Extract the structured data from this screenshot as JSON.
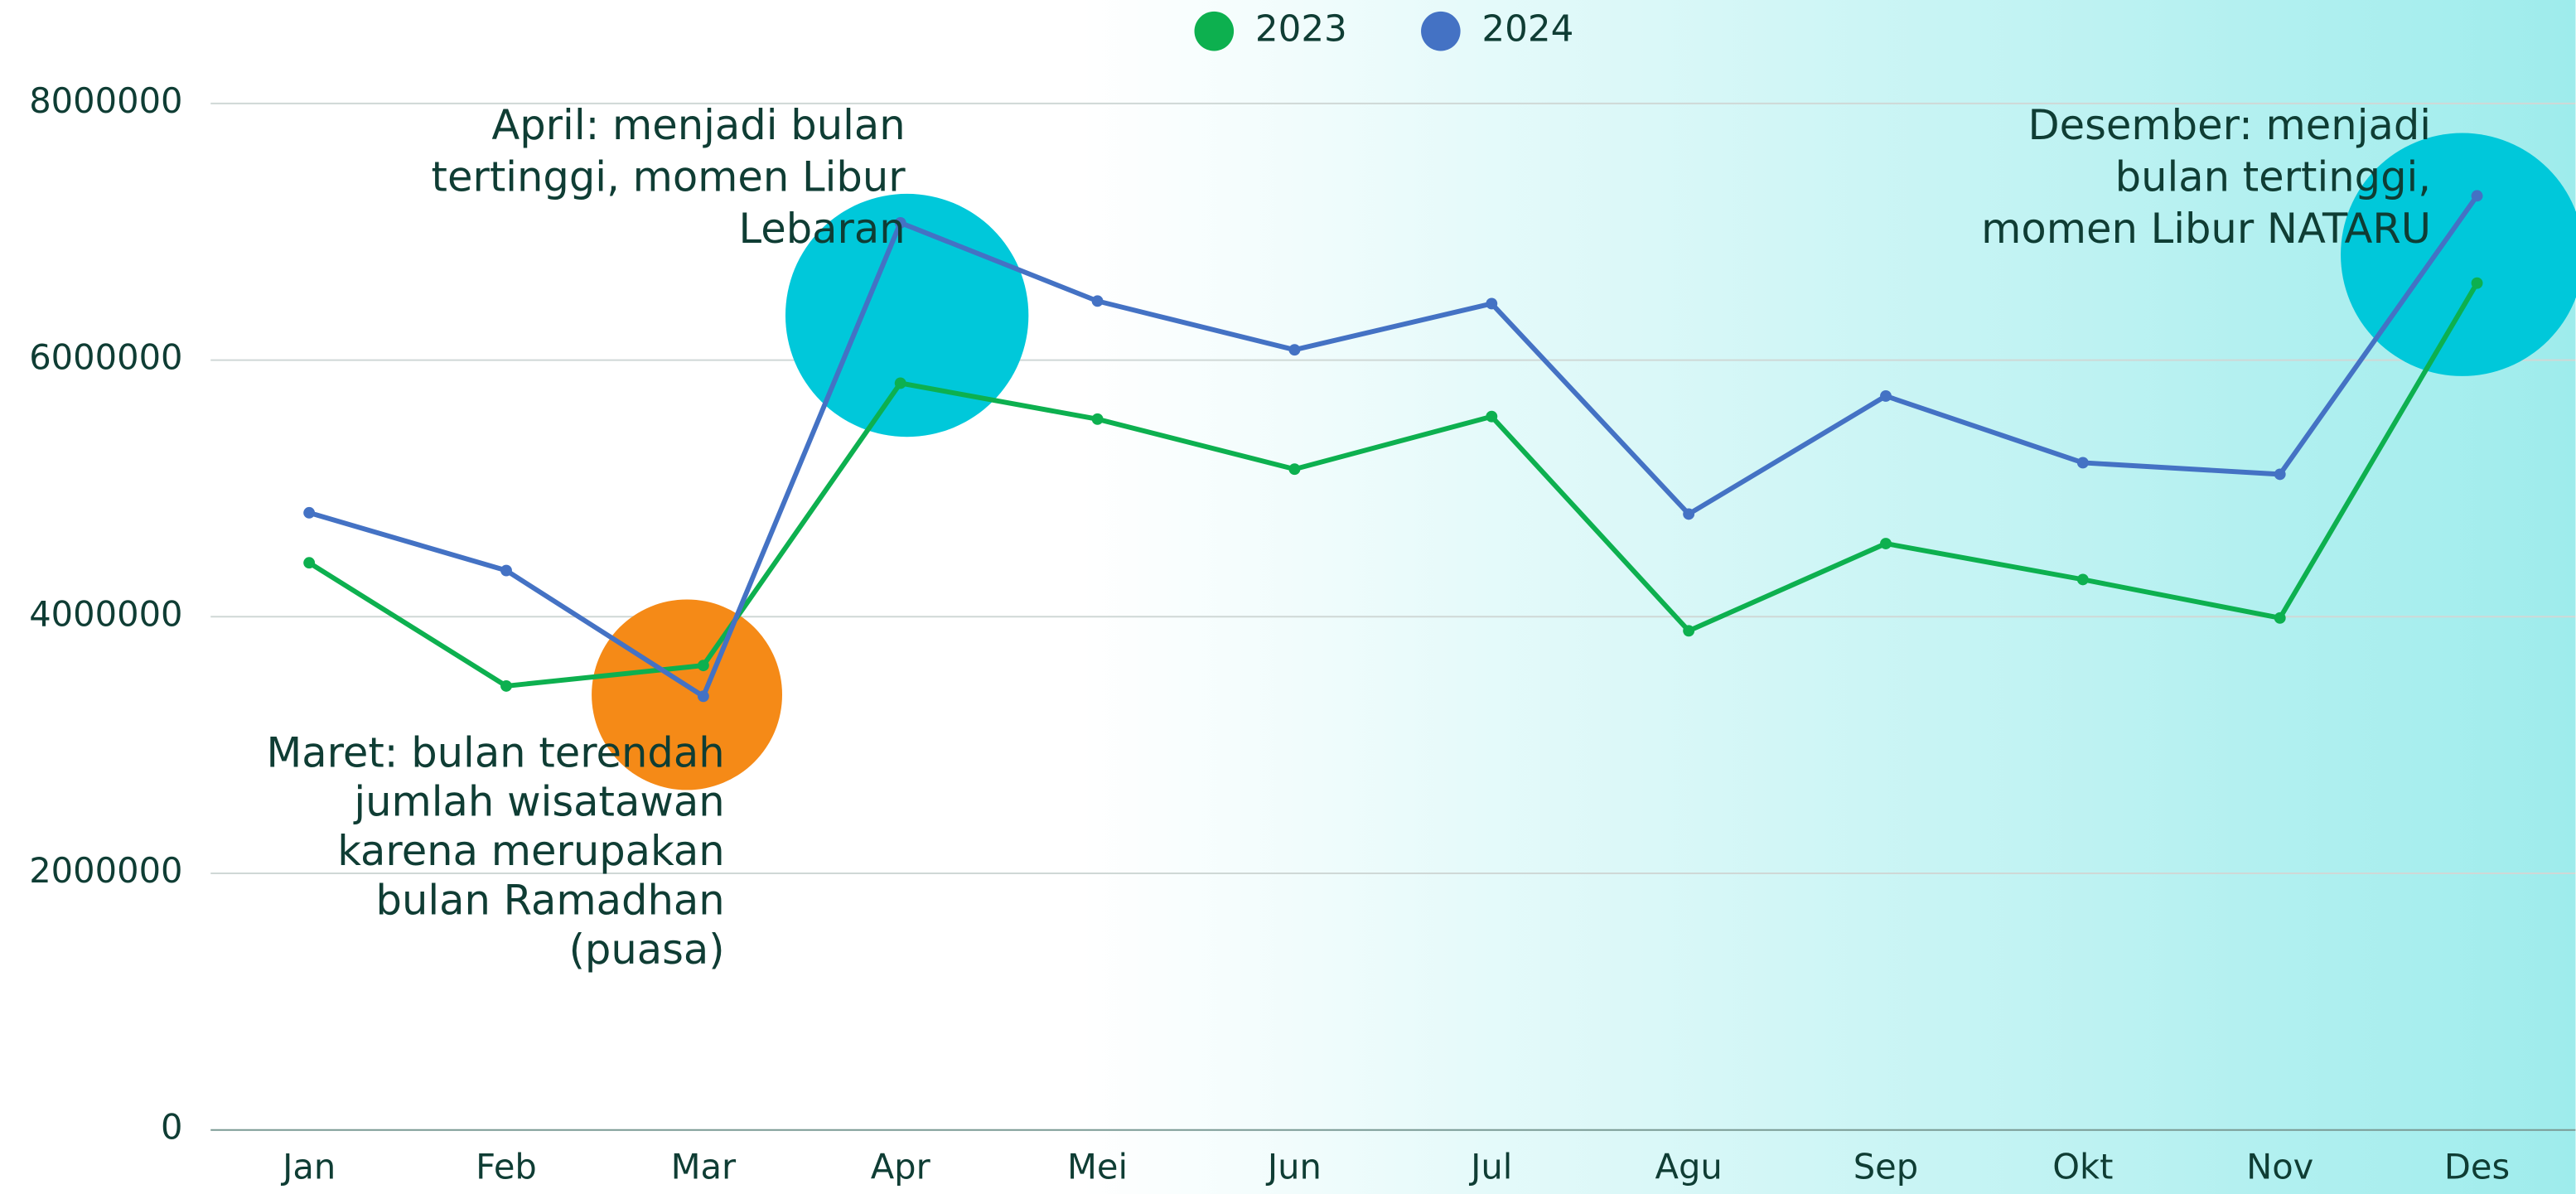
{
  "chart_data": {
    "type": "line",
    "categories": [
      "Jan",
      "Feb",
      "Mar",
      "Apr",
      "Mei",
      "Jun",
      "Jul",
      "Agu",
      "Sep",
      "Okt",
      "Nov",
      "Des"
    ],
    "series": [
      {
        "name": "2023",
        "color": "#0db04f",
        "values": [
          4420000,
          3460000,
          3620000,
          5820000,
          5540000,
          5150000,
          5560000,
          3890000,
          4570000,
          4290000,
          3990000,
          6600000
        ]
      },
      {
        "name": "2024",
        "color": "#4472c4",
        "values": [
          4810000,
          4360000,
          3380000,
          7070000,
          6460000,
          6080000,
          6440000,
          4800000,
          5720000,
          5200000,
          5110000,
          7280000
        ]
      }
    ],
    "ylim": [
      0,
      8000000
    ],
    "yticks": [
      0,
      2000000,
      4000000,
      6000000,
      8000000
    ],
    "grid": true,
    "legend": "top",
    "annotations": [
      [
        "April: menjadi bulan",
        "tertinggi, momen Libur",
        "Lebaran"
      ],
      [
        "Maret: bulan terendah",
        "jumlah wisatawan",
        "karena merupakan",
        "bulan Ramadhan",
        "(puasa)"
      ],
      [
        "Desember: menjadi",
        "bulan tertinggi,",
        "momen Libur NATARU"
      ]
    ]
  }
}
